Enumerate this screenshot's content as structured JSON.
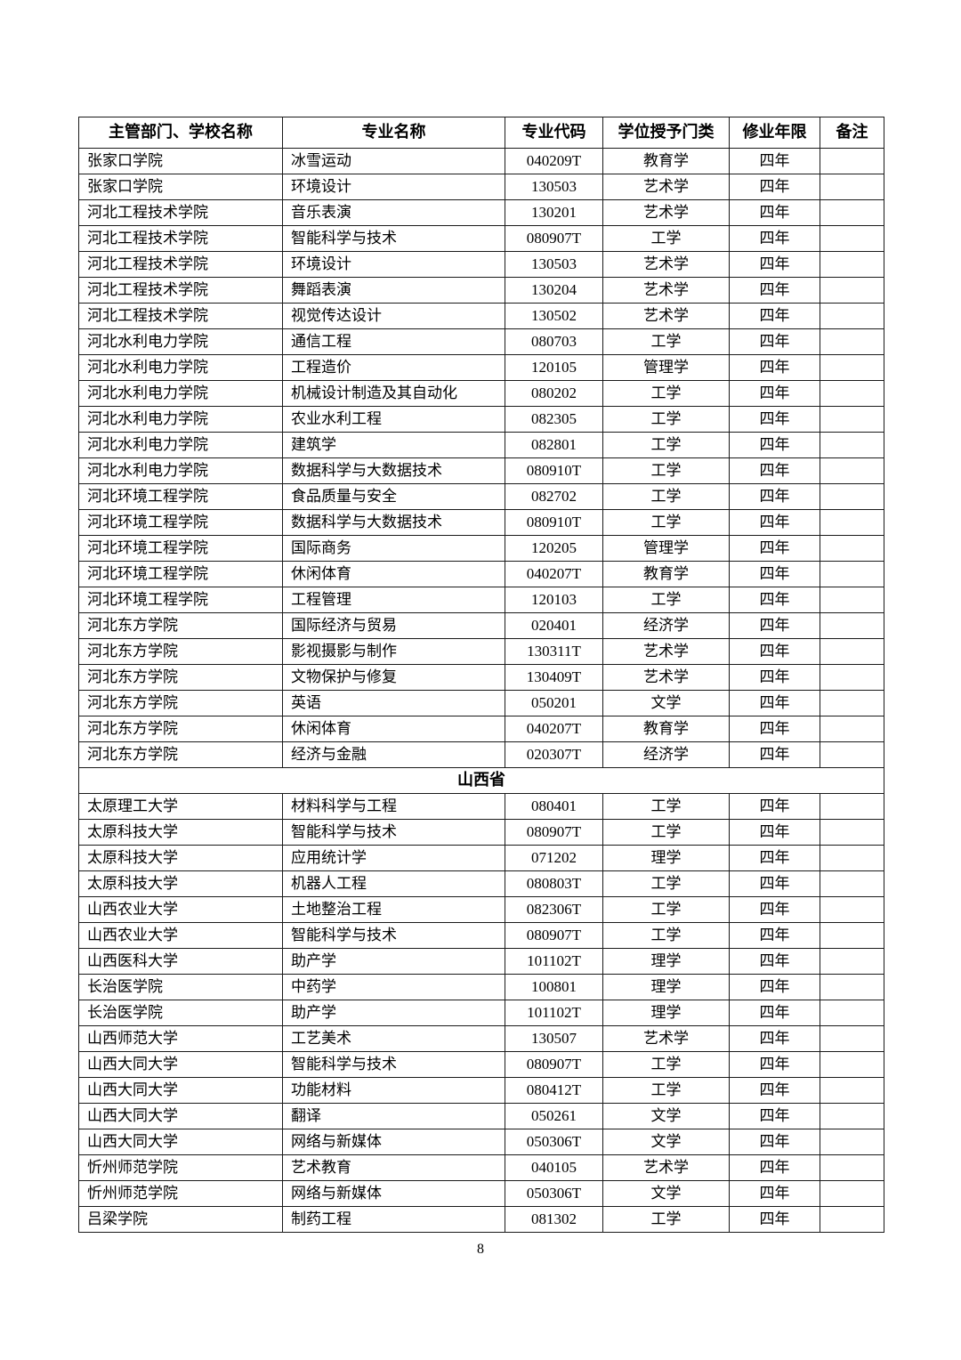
{
  "page": {
    "number": "8"
  },
  "table": {
    "headers": [
      "主管部门、学校名称",
      "专业名称",
      "专业代码",
      "学位授予门类",
      "修业年限",
      "备注"
    ],
    "sections": [
      {
        "title": null,
        "rows": [
          {
            "school": "张家口学院",
            "major": "冰雪运动",
            "code": "040209T",
            "degree": "教育学",
            "years": "四年",
            "remark": ""
          },
          {
            "school": "张家口学院",
            "major": "环境设计",
            "code": "130503",
            "degree": "艺术学",
            "years": "四年",
            "remark": ""
          },
          {
            "school": "河北工程技术学院",
            "major": "音乐表演",
            "code": "130201",
            "degree": "艺术学",
            "years": "四年",
            "remark": ""
          },
          {
            "school": "河北工程技术学院",
            "major": "智能科学与技术",
            "code": "080907T",
            "degree": "工学",
            "years": "四年",
            "remark": ""
          },
          {
            "school": "河北工程技术学院",
            "major": "环境设计",
            "code": "130503",
            "degree": "艺术学",
            "years": "四年",
            "remark": ""
          },
          {
            "school": "河北工程技术学院",
            "major": "舞蹈表演",
            "code": "130204",
            "degree": "艺术学",
            "years": "四年",
            "remark": ""
          },
          {
            "school": "河北工程技术学院",
            "major": "视觉传达设计",
            "code": "130502",
            "degree": "艺术学",
            "years": "四年",
            "remark": ""
          },
          {
            "school": "河北水利电力学院",
            "major": "通信工程",
            "code": "080703",
            "degree": "工学",
            "years": "四年",
            "remark": ""
          },
          {
            "school": "河北水利电力学院",
            "major": "工程造价",
            "code": "120105",
            "degree": "管理学",
            "years": "四年",
            "remark": ""
          },
          {
            "school": "河北水利电力学院",
            "major": "机械设计制造及其自动化",
            "code": "080202",
            "degree": "工学",
            "years": "四年",
            "remark": ""
          },
          {
            "school": "河北水利电力学院",
            "major": "农业水利工程",
            "code": "082305",
            "degree": "工学",
            "years": "四年",
            "remark": ""
          },
          {
            "school": "河北水利电力学院",
            "major": "建筑学",
            "code": "082801",
            "degree": "工学",
            "years": "四年",
            "remark": ""
          },
          {
            "school": "河北水利电力学院",
            "major": "数据科学与大数据技术",
            "code": "080910T",
            "degree": "工学",
            "years": "四年",
            "remark": ""
          },
          {
            "school": "河北环境工程学院",
            "major": "食品质量与安全",
            "code": "082702",
            "degree": "工学",
            "years": "四年",
            "remark": ""
          },
          {
            "school": "河北环境工程学院",
            "major": "数据科学与大数据技术",
            "code": "080910T",
            "degree": "工学",
            "years": "四年",
            "remark": ""
          },
          {
            "school": "河北环境工程学院",
            "major": "国际商务",
            "code": "120205",
            "degree": "管理学",
            "years": "四年",
            "remark": ""
          },
          {
            "school": "河北环境工程学院",
            "major": "休闲体育",
            "code": "040207T",
            "degree": "教育学",
            "years": "四年",
            "remark": ""
          },
          {
            "school": "河北环境工程学院",
            "major": "工程管理",
            "code": "120103",
            "degree": "工学",
            "years": "四年",
            "remark": ""
          },
          {
            "school": "河北东方学院",
            "major": "国际经济与贸易",
            "code": "020401",
            "degree": "经济学",
            "years": "四年",
            "remark": ""
          },
          {
            "school": "河北东方学院",
            "major": "影视摄影与制作",
            "code": "130311T",
            "degree": "艺术学",
            "years": "四年",
            "remark": ""
          },
          {
            "school": "河北东方学院",
            "major": "文物保护与修复",
            "code": "130409T",
            "degree": "艺术学",
            "years": "四年",
            "remark": ""
          },
          {
            "school": "河北东方学院",
            "major": "英语",
            "code": "050201",
            "degree": "文学",
            "years": "四年",
            "remark": ""
          },
          {
            "school": "河北东方学院",
            "major": "休闲体育",
            "code": "040207T",
            "degree": "教育学",
            "years": "四年",
            "remark": ""
          },
          {
            "school": "河北东方学院",
            "major": "经济与金融",
            "code": "020307T",
            "degree": "经济学",
            "years": "四年",
            "remark": ""
          }
        ]
      },
      {
        "title": "山西省",
        "rows": [
          {
            "school": "太原理工大学",
            "major": "材料科学与工程",
            "code": "080401",
            "degree": "工学",
            "years": "四年",
            "remark": ""
          },
          {
            "school": "太原科技大学",
            "major": "智能科学与技术",
            "code": "080907T",
            "degree": "工学",
            "years": "四年",
            "remark": ""
          },
          {
            "school": "太原科技大学",
            "major": "应用统计学",
            "code": "071202",
            "degree": "理学",
            "years": "四年",
            "remark": ""
          },
          {
            "school": "太原科技大学",
            "major": "机器人工程",
            "code": "080803T",
            "degree": "工学",
            "years": "四年",
            "remark": ""
          },
          {
            "school": "山西农业大学",
            "major": "土地整治工程",
            "code": "082306T",
            "degree": "工学",
            "years": "四年",
            "remark": ""
          },
          {
            "school": "山西农业大学",
            "major": "智能科学与技术",
            "code": "080907T",
            "degree": "工学",
            "years": "四年",
            "remark": ""
          },
          {
            "school": "山西医科大学",
            "major": "助产学",
            "code": "101102T",
            "degree": "理学",
            "years": "四年",
            "remark": ""
          },
          {
            "school": "长治医学院",
            "major": "中药学",
            "code": "100801",
            "degree": "理学",
            "years": "四年",
            "remark": ""
          },
          {
            "school": "长治医学院",
            "major": "助产学",
            "code": "101102T",
            "degree": "理学",
            "years": "四年",
            "remark": ""
          },
          {
            "school": "山西师范大学",
            "major": "工艺美术",
            "code": "130507",
            "degree": "艺术学",
            "years": "四年",
            "remark": ""
          },
          {
            "school": "山西大同大学",
            "major": "智能科学与技术",
            "code": "080907T",
            "degree": "工学",
            "years": "四年",
            "remark": ""
          },
          {
            "school": "山西大同大学",
            "major": "功能材料",
            "code": "080412T",
            "degree": "工学",
            "years": "四年",
            "remark": ""
          },
          {
            "school": "山西大同大学",
            "major": "翻译",
            "code": "050261",
            "degree": "文学",
            "years": "四年",
            "remark": ""
          },
          {
            "school": "山西大同大学",
            "major": "网络与新媒体",
            "code": "050306T",
            "degree": "文学",
            "years": "四年",
            "remark": ""
          },
          {
            "school": "忻州师范学院",
            "major": "艺术教育",
            "code": "040105",
            "degree": "艺术学",
            "years": "四年",
            "remark": ""
          },
          {
            "school": "忻州师范学院",
            "major": "网络与新媒体",
            "code": "050306T",
            "degree": "文学",
            "years": "四年",
            "remark": ""
          },
          {
            "school": "吕梁学院",
            "major": "制药工程",
            "code": "081302",
            "degree": "工学",
            "years": "四年",
            "remark": ""
          }
        ]
      }
    ]
  }
}
